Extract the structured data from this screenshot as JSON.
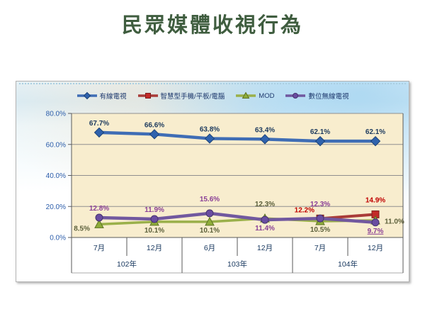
{
  "page": {
    "title": "民眾媒體收視行為"
  },
  "chart_data": {
    "type": "line",
    "title": "民眾媒體收視行為",
    "legend_position": "top",
    "grid": true,
    "plot_bg": "#f8edce",
    "gridline_color": "#8f8f8f",
    "axis_line_color": "#5a5a5a",
    "y_axis": {
      "min": 0,
      "max": 80,
      "step": 20,
      "unit": "%",
      "ticks": [
        "80.0%",
        "60.0%",
        "40.0%",
        "20.0%",
        "0.0%"
      ],
      "tick_color": "#2a5caa"
    },
    "x_axis": {
      "months": [
        "7月",
        "12月",
        "6月",
        "12月",
        "7月",
        "12月"
      ],
      "years": [
        {
          "label": "102年",
          "span": 2
        },
        {
          "label": "103年",
          "span": 2
        },
        {
          "label": "104年",
          "span": 2
        }
      ],
      "label_color": "#17375e"
    },
    "series": [
      {
        "name": "有線電視",
        "slug": "cable-tv",
        "color": "#3f6db5",
        "marker": "diamond",
        "marker_fill": "#2f62ad",
        "marker_stroke": "#1d4377",
        "label_color": "#1c3a5e",
        "line_width": 4.5,
        "values": [
          67.7,
          66.6,
          63.8,
          63.4,
          62.1,
          62.1
        ],
        "labels": [
          "67.7%",
          "66.6%",
          "63.8%",
          "63.4%",
          "62.1%",
          "62.1%"
        ],
        "label_pos": [
          "above",
          "above",
          "above",
          "above",
          "above",
          "above"
        ]
      },
      {
        "name": "智慧型手機/平板/電腦",
        "slug": "smartphone-tablet-pc",
        "color": "#a93b38",
        "marker": "square",
        "marker_fill": "#c32a28",
        "marker_stroke": "#7e1f1e",
        "label_color": "#c00000",
        "line_width": 4,
        "values": [
          null,
          null,
          null,
          null,
          12.2,
          14.9
        ],
        "labels": [
          null,
          null,
          null,
          null,
          "12.2%",
          "14.9%"
        ],
        "label_pos": [
          null,
          null,
          null,
          null,
          "above-left",
          "above-far"
        ]
      },
      {
        "name": "MOD",
        "slug": "mod",
        "color": "#9ab04a",
        "marker": "triangle",
        "marker_fill": "#8fad3a",
        "marker_stroke": "#5c7224",
        "label_color": "#5b5f3a",
        "line_width": 3.5,
        "values": [
          8.5,
          10.1,
          10.1,
          12.3,
          10.5,
          11.0
        ],
        "labels": [
          "8.5%",
          "10.1%",
          "10.1%",
          "12.3%",
          "10.5%",
          "11.0%"
        ],
        "label_pos": [
          "left-below",
          "below",
          "below",
          "above-far",
          "below",
          "right"
        ]
      },
      {
        "name": "數位無線電視",
        "slug": "digital-wireless-tv",
        "color": "#71589f",
        "marker": "circle",
        "marker_fill": "#6a4da1",
        "marker_stroke": "#46336e",
        "label_color": "#8a4096",
        "line_width": 4.5,
        "underline_last": true,
        "values": [
          12.8,
          11.9,
          15.6,
          11.4,
          12.3,
          9.7
        ],
        "labels": [
          "12.8%",
          "11.9%",
          "15.6%",
          "11.4%",
          "12.3%",
          "9.7%"
        ],
        "label_pos": [
          "above",
          "above",
          "above-far",
          "below",
          "above-far",
          "below"
        ]
      }
    ]
  }
}
